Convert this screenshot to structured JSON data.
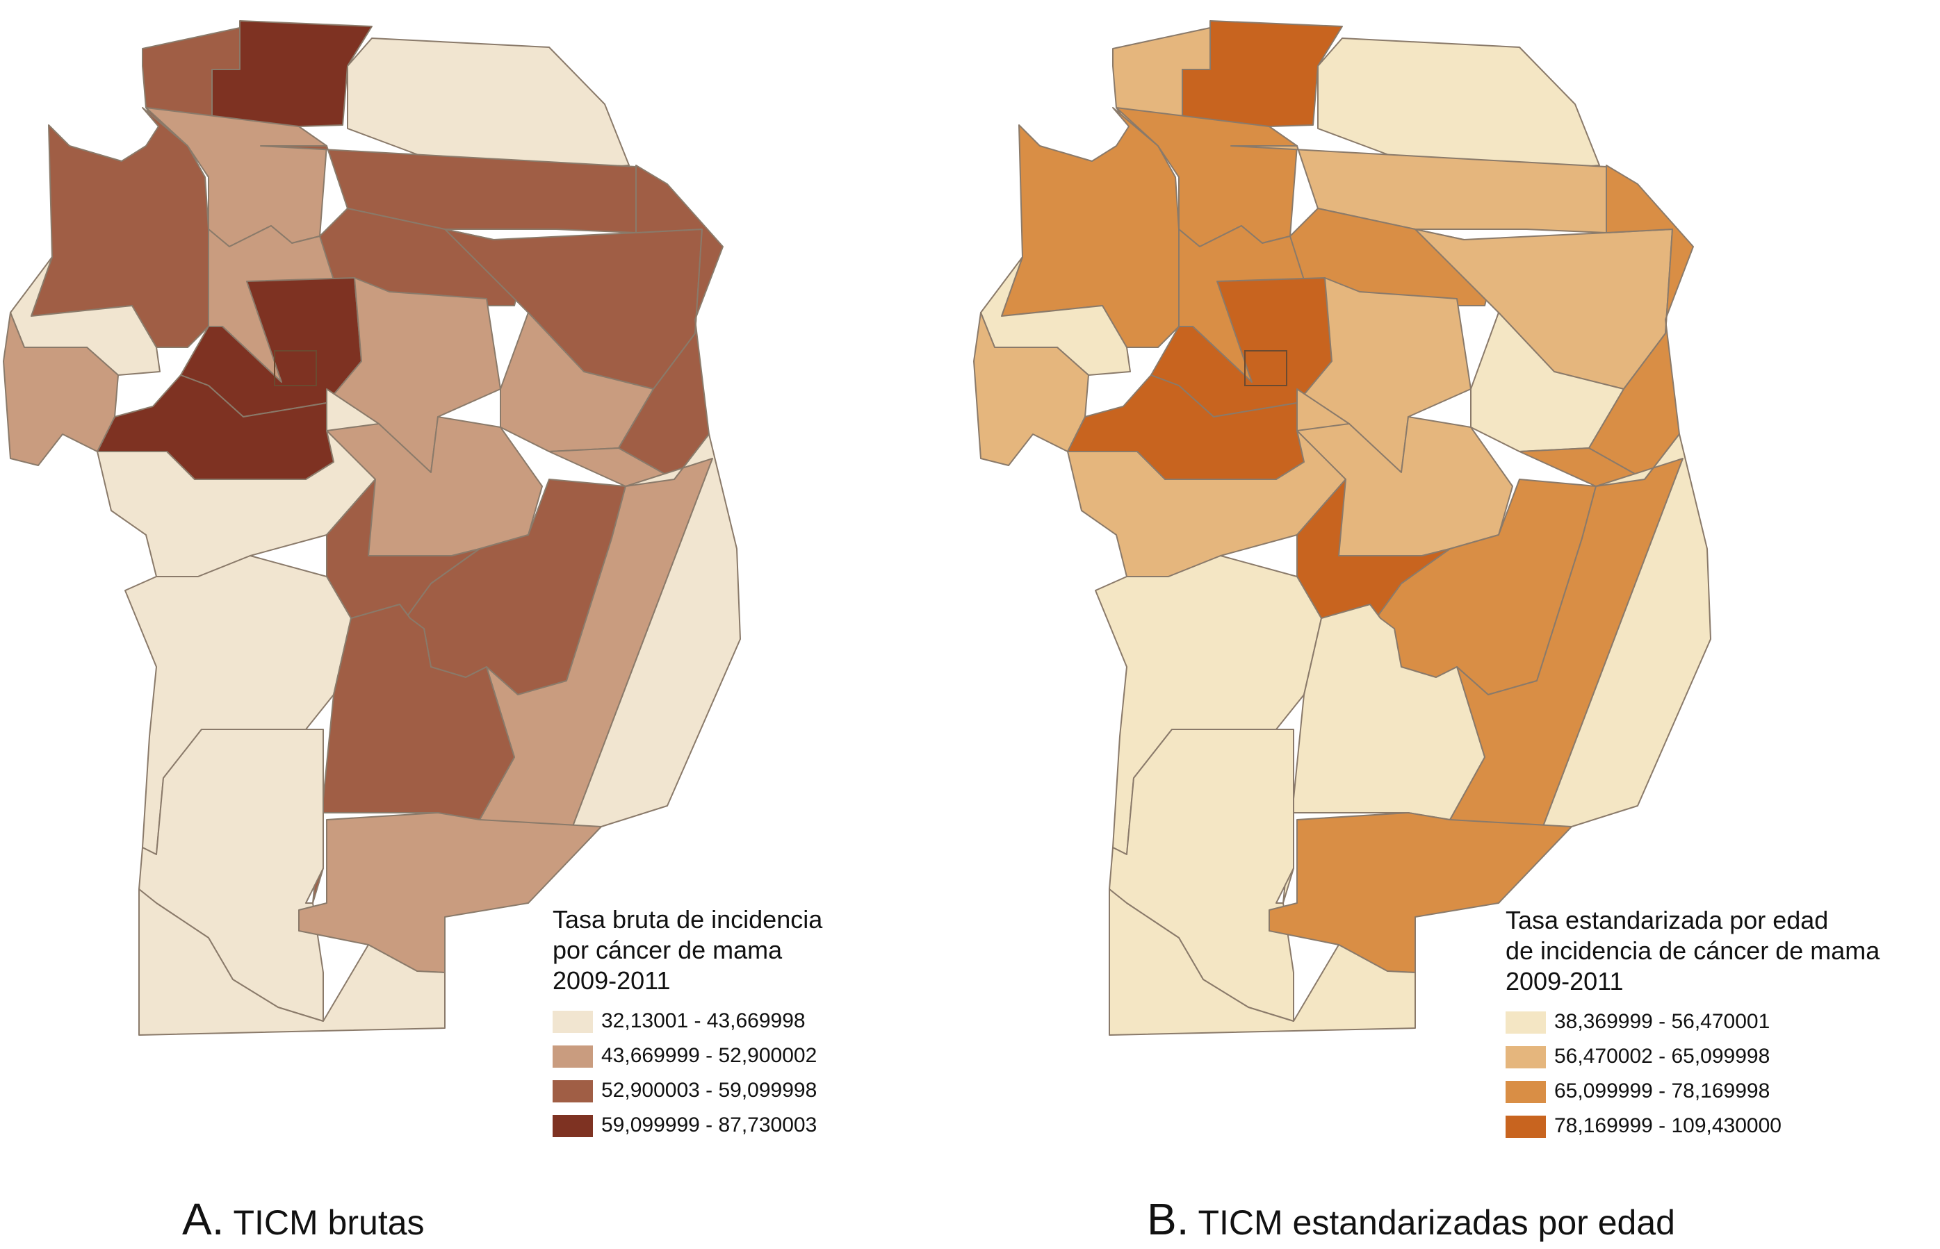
{
  "panels": [
    {
      "letter": "A.",
      "caption": "TICM brutas",
      "legend": {
        "title_lines": [
          "Tasa bruta de incidencia",
          "por cáncer de mama",
          "2009-2011"
        ],
        "classes": [
          {
            "label": "32,13001 - 43,669998",
            "color": "#f1e5d0"
          },
          {
            "label": "43,669999 - 52,900002",
            "color": "#c99c7f"
          },
          {
            "label": "52,900003 - 59,099998",
            "color": "#a05e45"
          },
          {
            "label": "59,099999 - 87,730003",
            "color": "#7e3222"
          }
        ]
      },
      "region_classes": [
        2,
        3,
        0,
        2,
        1,
        2,
        0,
        2,
        1,
        3,
        1,
        2,
        1,
        2,
        3,
        1,
        0,
        1,
        2,
        2,
        1,
        0,
        0,
        2,
        0,
        1,
        0
      ]
    },
    {
      "letter": "B.",
      "caption": "TICM estandarizadas por edad",
      "legend": {
        "title_lines": [
          "Tasa estandarizada por edad",
          "de incidencia de cáncer de mama",
          "2009-2011"
        ],
        "classes": [
          {
            "label": "38,369999 - 56,470001",
            "color": "#f4e6c4"
          },
          {
            "label": "56,470002 - 65,099998",
            "color": "#e5b67d"
          },
          {
            "label": "65,099999 - 78,169998",
            "color": "#d98e45"
          },
          {
            "label": "78,169999 - 109,430000",
            "color": "#c8641f"
          }
        ]
      },
      "region_classes": [
        1,
        3,
        0,
        2,
        2,
        1,
        0,
        2,
        2,
        3,
        1,
        1,
        0,
        2,
        3,
        1,
        1,
        1,
        3,
        2,
        2,
        0,
        0,
        0,
        0,
        2,
        0
      ]
    }
  ]
}
